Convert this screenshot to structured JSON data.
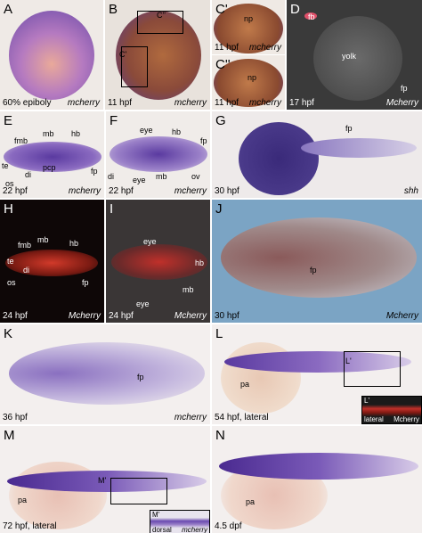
{
  "panels": [
    {
      "letter": "A",
      "stage": "60% epiboly",
      "gene": "mcherry",
      "labels": []
    },
    {
      "letter": "B",
      "stage": "11 hpf",
      "gene": "mcherry",
      "labels": [
        "C''",
        "C'"
      ]
    },
    {
      "letter": "C'",
      "stage": "11 hpf",
      "gene": "mcherry",
      "labels": [
        "np"
      ]
    },
    {
      "letter": "C''",
      "stage": "11 hpf",
      "gene": "mcherry",
      "labels": [
        "np"
      ]
    },
    {
      "letter": "D",
      "stage": "17 hpf",
      "gene": "Mcherry",
      "labels": [
        "fb",
        "yolk",
        "fp"
      ]
    },
    {
      "letter": "E",
      "stage": "22 hpf",
      "gene": "mcherry",
      "labels": [
        "fmb",
        "mb",
        "hb",
        "te",
        "di",
        "pcp",
        "os",
        "fp"
      ]
    },
    {
      "letter": "F",
      "stage": "22 hpf",
      "gene": "mcherry",
      "labels": [
        "eye",
        "hb",
        "fp",
        "di",
        "eye",
        "mb",
        "ov"
      ]
    },
    {
      "letter": "G",
      "stage": "30 hpf",
      "gene": "shh",
      "labels": [
        "fp"
      ]
    },
    {
      "letter": "H",
      "stage": "24 hpf",
      "gene": "Mcherry",
      "labels": [
        "fmb",
        "mb",
        "hb",
        "te",
        "di",
        "os",
        "fp"
      ]
    },
    {
      "letter": "I",
      "stage": "24 hpf",
      "gene": "Mcherry",
      "labels": [
        "eye",
        "hb",
        "eye",
        "mb"
      ]
    },
    {
      "letter": "J",
      "stage": "30 hpf",
      "gene": "Mcherry",
      "labels": [
        "fp"
      ]
    },
    {
      "letter": "K",
      "stage": "36 hpf",
      "gene": "mcherry",
      "labels": [
        "fp"
      ]
    },
    {
      "letter": "L",
      "stage": "54 hpf, lateral",
      "gene": "mcherry",
      "labels": [
        "L'",
        "pa"
      ],
      "inset": {
        "letter": "L'",
        "view": "lateral",
        "gene": "Mcherry"
      }
    },
    {
      "letter": "M",
      "stage": "72 hpf, lateral",
      "gene": "",
      "labels": [
        "M'",
        "pa"
      ],
      "inset": {
        "letter": "M'",
        "view": "dorsal",
        "gene": "mcherry"
      }
    },
    {
      "letter": "N",
      "stage": "4.5 dpf",
      "gene": "",
      "labels": [
        "pa"
      ]
    }
  ]
}
